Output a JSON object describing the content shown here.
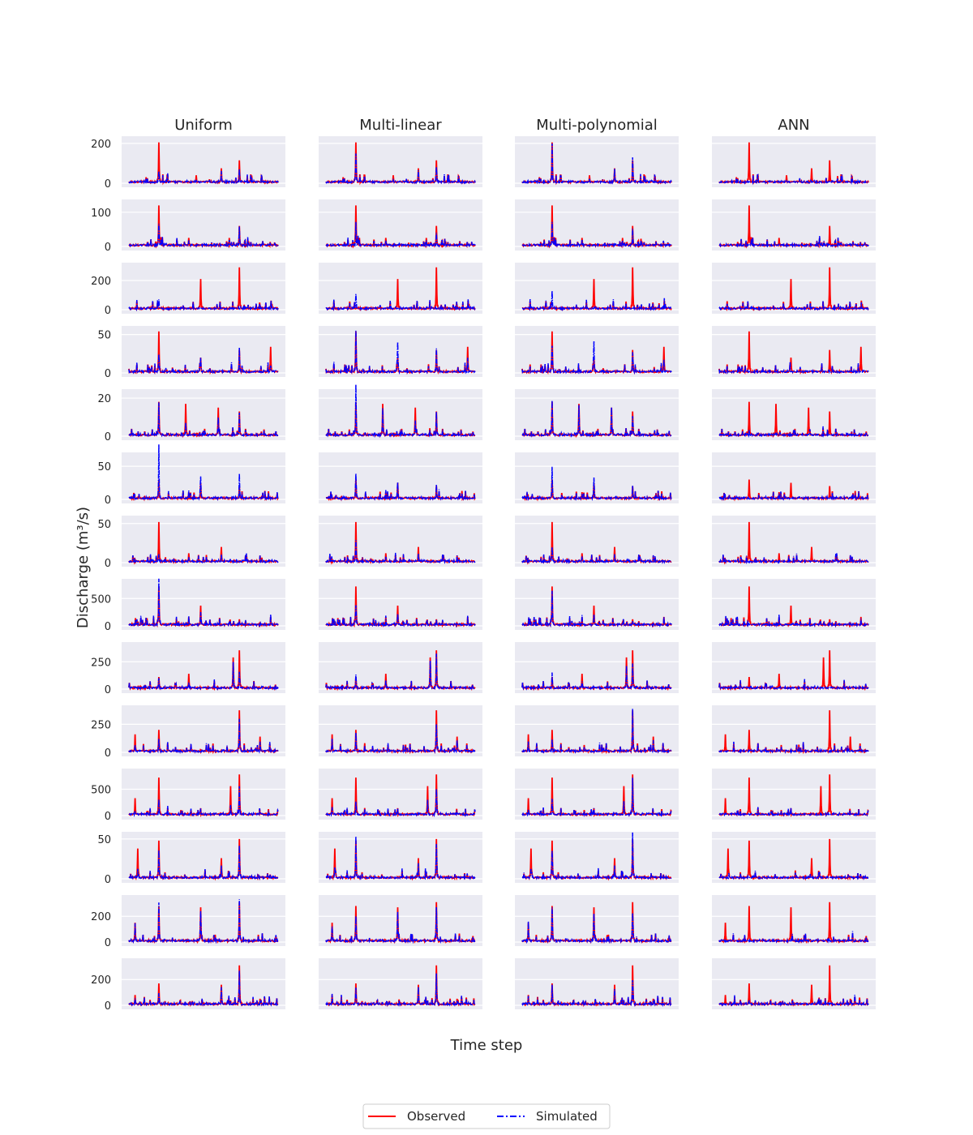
{
  "chart_data": {
    "type": "line",
    "layout": "grid of small multiples: 14 rows (catchments) x 4 columns (methods)",
    "column_titles": [
      "Uniform",
      "Multi-linear",
      "Multi-polynomial",
      "ANN"
    ],
    "xlabel": "Time step",
    "ylabel": "Discharge (m³/s)",
    "grid": true,
    "legend": {
      "placement": "bottom-center",
      "entries": [
        {
          "label": "Observed",
          "color": "#ff0000",
          "style": "solid"
        },
        {
          "label": "Simulated",
          "color": "#0000ff",
          "style": "dash-dot"
        }
      ]
    },
    "rows": [
      {
        "ylim": [
          0,
          220
        ],
        "yticks": [
          0,
          200
        ],
        "peaks": [
          [
            0.2,
            205,
            85,
            155,
            165
          ],
          [
            0.74,
            115,
            70,
            100,
            105
          ],
          [
            0.45,
            40,
            15,
            20,
            25
          ],
          [
            0.62,
            75,
            50,
            55,
            65
          ]
        ]
      },
      {
        "ylim": [
          0,
          128
        ],
        "yticks": [
          0,
          100
        ],
        "peaks": [
          [
            0.2,
            120,
            70,
            60,
            85
          ],
          [
            0.74,
            60,
            55,
            45,
            40
          ],
          [
            0.4,
            25,
            20,
            18,
            20
          ]
        ]
      },
      {
        "ylim": [
          0,
          300
        ],
        "yticks": [
          0,
          200
        ],
        "peaks": [
          [
            0.48,
            210,
            0,
            0,
            0
          ],
          [
            0.74,
            290,
            0,
            0,
            0
          ],
          [
            0.2,
            0,
            60,
            130,
            120
          ],
          [
            0.96,
            40,
            20,
            25,
            30
          ]
        ]
      },
      {
        "ylim": [
          0,
          57
        ],
        "yticks": [
          0,
          50
        ],
        "peaks": [
          [
            0.2,
            54,
            30,
            52,
            50
          ],
          [
            0.48,
            20,
            22,
            44,
            44
          ],
          [
            0.74,
            30,
            28,
            32,
            33
          ],
          [
            0.95,
            34,
            12,
            16,
            16
          ]
        ]
      },
      {
        "ylim": [
          0,
          23
        ],
        "yticks": [
          0,
          20
        ],
        "peaks": [
          [
            0.2,
            18,
            17,
            21,
            20
          ],
          [
            0.38,
            17,
            6,
            12,
            13
          ],
          [
            0.6,
            15,
            12,
            11,
            12
          ],
          [
            0.74,
            13,
            10,
            12,
            12
          ]
        ]
      },
      {
        "ylim": [
          0,
          66
        ],
        "yticks": [
          0,
          50
        ],
        "peaks": [
          [
            0.2,
            30,
            65,
            42,
            42
          ],
          [
            0.48,
            25,
            42,
            30,
            38
          ],
          [
            0.74,
            20,
            30,
            20,
            22
          ]
        ]
      },
      {
        "ylim": [
          0,
          56
        ],
        "yticks": [
          0,
          50
        ],
        "peaks": [
          [
            0.2,
            52,
            12,
            25,
            25
          ],
          [
            0.62,
            20,
            10,
            12,
            12
          ],
          [
            0.4,
            12,
            8,
            8,
            8
          ]
        ]
      },
      {
        "ylim": [
          0,
          800
        ],
        "yticks": [
          0,
          500
        ],
        "peaks": [
          [
            0.2,
            720,
            760,
            480,
            620
          ],
          [
            0.48,
            370,
            330,
            280,
            260
          ],
          [
            0.74,
            120,
            80,
            90,
            80
          ]
        ]
      },
      {
        "ylim": [
          0,
          400
        ],
        "yticks": [
          0,
          250
        ],
        "peaks": [
          [
            0.74,
            355,
            180,
            250,
            210
          ],
          [
            0.7,
            290,
            200,
            230,
            210
          ],
          [
            0.4,
            140,
            80,
            100,
            80
          ],
          [
            0.2,
            110,
            130,
            130,
            120
          ]
        ]
      },
      {
        "ylim": [
          0,
          390
        ],
        "yticks": [
          0,
          250
        ],
        "peaks": [
          [
            0.74,
            375,
            320,
            330,
            330
          ],
          [
            0.2,
            200,
            120,
            140,
            130
          ],
          [
            0.04,
            160,
            80,
            100,
            100
          ],
          [
            0.88,
            140,
            90,
            100,
            100
          ]
        ]
      },
      {
        "ylim": [
          0,
          830
        ],
        "yticks": [
          0,
          500
        ],
        "peaks": [
          [
            0.74,
            780,
            560,
            620,
            580
          ],
          [
            0.2,
            720,
            250,
            300,
            280
          ],
          [
            0.68,
            560,
            200,
            280,
            240
          ],
          [
            0.04,
            330,
            120,
            150,
            140
          ]
        ]
      },
      {
        "ylim": [
          0,
          55
        ],
        "yticks": [
          0,
          50
        ],
        "peaks": [
          [
            0.74,
            50,
            40,
            50,
            45
          ],
          [
            0.2,
            48,
            42,
            48,
            46
          ],
          [
            0.06,
            38,
            12,
            15,
            15
          ],
          [
            0.62,
            26,
            16,
            20,
            18
          ]
        ]
      },
      {
        "ylim": [
          0,
          340
        ],
        "yticks": [
          0,
          200
        ],
        "peaks": [
          [
            0.74,
            310,
            300,
            290,
            300
          ],
          [
            0.2,
            280,
            280,
            270,
            270
          ],
          [
            0.48,
            270,
            270,
            260,
            240
          ],
          [
            0.04,
            150,
            140,
            150,
            140
          ]
        ]
      },
      {
        "ylim": [
          0,
          340
        ],
        "yticks": [
          0,
          200
        ],
        "peaks": [
          [
            0.74,
            310,
            230,
            250,
            240
          ],
          [
            0.2,
            170,
            130,
            140,
            130
          ],
          [
            0.62,
            160,
            120,
            130,
            120
          ],
          [
            0.04,
            80,
            60,
            70,
            70
          ]
        ]
      }
    ]
  }
}
